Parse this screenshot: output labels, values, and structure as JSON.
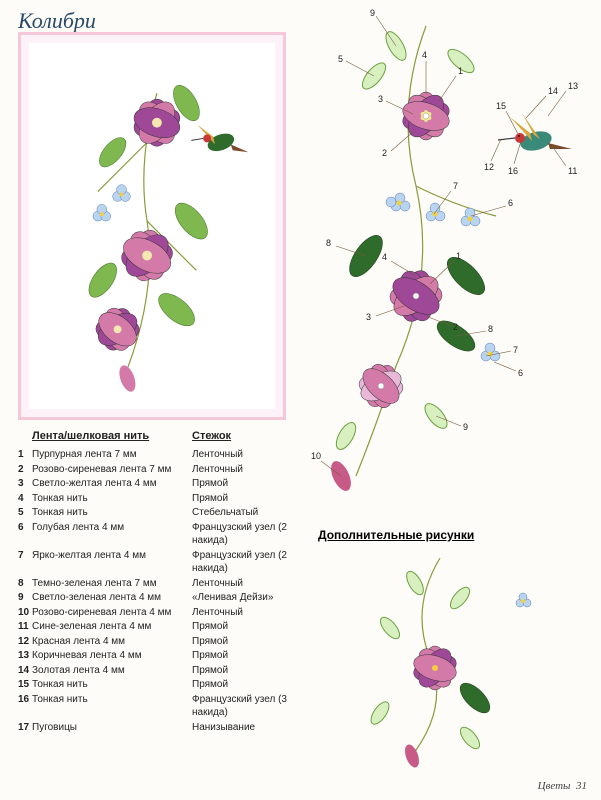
{
  "title": "Колибри",
  "extra_title": "Дополнительные рисунки",
  "footer": {
    "label": "Цветы",
    "page": "31"
  },
  "table": {
    "header_material": "Лента/шелковая нить",
    "header_stitch": "Стежок",
    "rows": [
      {
        "n": "1",
        "material": "Пурпурная лента 7 мм",
        "stitch": "Ленточный"
      },
      {
        "n": "2",
        "material": "Розово-сиреневая лента 7 мм",
        "stitch": "Ленточный"
      },
      {
        "n": "3",
        "material": "Светло-желтая лента 4 мм",
        "stitch": "Прямой"
      },
      {
        "n": "4",
        "material": "Тонкая нить",
        "stitch": "Прямой"
      },
      {
        "n": "5",
        "material": "Тонкая нить",
        "stitch": "Стебельчатый"
      },
      {
        "n": "6",
        "material": "Голубая лента 4 мм",
        "stitch": "Французский узел (2 накида)"
      },
      {
        "n": "7",
        "material": "Ярко-желтая лента 4 мм",
        "stitch": "Французский узел (2 накида)"
      },
      {
        "n": "8",
        "material": "Темно-зеленая лента 7 мм",
        "stitch": "Ленточный"
      },
      {
        "n": "9",
        "material": "Светло-зеленая лента 4 мм",
        "stitch": "«Ленивая Дейзи»"
      },
      {
        "n": "10",
        "material": "Розово-сиреневая лента 4 мм",
        "stitch": "Ленточный"
      },
      {
        "n": "11",
        "material": "Сине-зеленая лента 4 мм",
        "stitch": "Прямой"
      },
      {
        "n": "12",
        "material": "Красная лента 4 мм",
        "stitch": "Прямой"
      },
      {
        "n": "13",
        "material": "Коричневая лента 4 мм",
        "stitch": "Прямой"
      },
      {
        "n": "14",
        "material": "Золотая лента 4 мм",
        "stitch": "Прямой"
      },
      {
        "n": "15",
        "material": "Тонкая нить",
        "stitch": "Прямой"
      },
      {
        "n": "16",
        "material": "Тонкая нить",
        "stitch": "Французский узел (3 накида)"
      },
      {
        "n": "17",
        "material": "Пуговицы",
        "stitch": "Нанизывание"
      }
    ]
  },
  "colors": {
    "purple": "#a04898",
    "pink": "#d47aa8",
    "lightpink": "#e8b8d8",
    "green_dark": "#2f6b2a",
    "green": "#6aa040",
    "green_light": "#b8e08a",
    "blue": "#9ac0e8",
    "yellow": "#f4d040",
    "gold": "#d8a840",
    "brown": "#7a4a2a",
    "red": "#c83838",
    "teal": "#3a8a7a",
    "white": "#ffffff"
  },
  "diagram_labels": [
    "1",
    "2",
    "3",
    "4",
    "5",
    "6",
    "7",
    "8",
    "9",
    "10",
    "11",
    "12",
    "13",
    "14",
    "15",
    "16"
  ]
}
